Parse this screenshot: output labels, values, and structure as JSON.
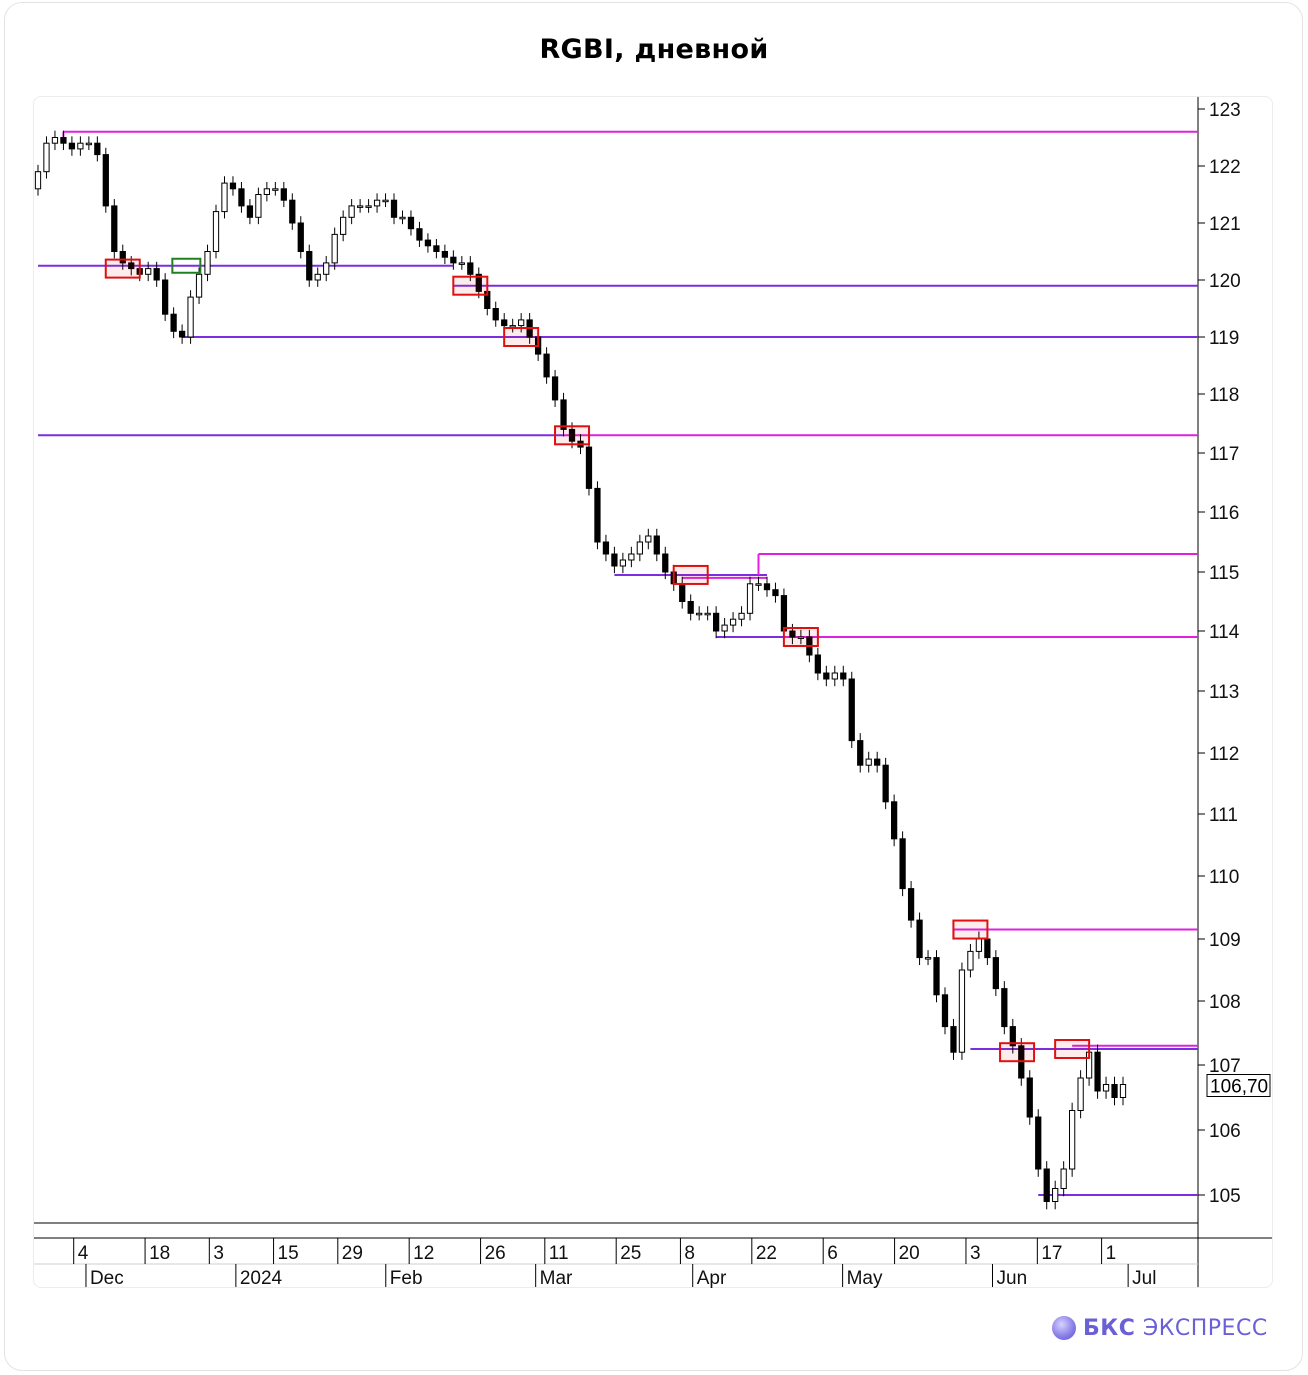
{
  "title": "RGBI, дневной",
  "brand": {
    "name_bold": "БКС",
    "name_light": "ЭКСПРЕСС"
  },
  "colors": {
    "magenta": "#e020e0",
    "purple": "#7a2ee0",
    "red_box": "#e01010",
    "green_box": "#208020",
    "candle": "#000000"
  },
  "chart_data": {
    "type": "candlestick",
    "title": "RGBI, дневной",
    "y_ticks": [
      "123",
      "122",
      "121",
      "120",
      "119",
      "118",
      "117",
      "116",
      "115",
      "114",
      "113",
      "112",
      "111",
      "110",
      "109",
      "108",
      "107",
      "106",
      "105"
    ],
    "x_ticks_days": [
      "4",
      "18",
      "3",
      "15",
      "29",
      "12",
      "26",
      "11",
      "25",
      "8",
      "22",
      "6",
      "20",
      "3",
      "17",
      "1"
    ],
    "x_ticks_months": [
      "Dec",
      "2024",
      "Feb",
      "Mar",
      "Apr",
      "May",
      "Jun",
      "Jul"
    ],
    "last_price_label": "106,70",
    "last_price": 106.7,
    "period": "late Nov 2023 – early Jul 2024, daily",
    "close_series": [
      121.9,
      122.4,
      122.5,
      122.4,
      122.3,
      122.4,
      122.4,
      122.2,
      121.3,
      120.5,
      120.3,
      120.2,
      120.1,
      120.2,
      120.0,
      119.4,
      119.1,
      119.0,
      119.7,
      120.1,
      120.5,
      121.2,
      121.7,
      121.6,
      121.3,
      121.1,
      121.5,
      121.6,
      121.6,
      121.4,
      121.0,
      120.5,
      120.0,
      120.1,
      120.3,
      120.8,
      121.1,
      121.3,
      121.3,
      121.3,
      121.4,
      121.4,
      121.1,
      121.1,
      120.9,
      120.7,
      120.6,
      120.5,
      120.4,
      120.3,
      120.3,
      120.1,
      119.8,
      119.5,
      119.3,
      119.2,
      119.2,
      119.3,
      119.0,
      118.7,
      118.3,
      117.9,
      117.4,
      117.2,
      117.1,
      116.4,
      115.5,
      115.3,
      115.1,
      115.2,
      115.3,
      115.5,
      115.6,
      115.3,
      115.0,
      114.8,
      114.5,
      114.3,
      114.3,
      114.3,
      114.0,
      114.1,
      114.2,
      114.3,
      114.8,
      114.8,
      114.7,
      114.6,
      114.0,
      113.9,
      113.9,
      113.6,
      113.3,
      113.2,
      113.3,
      113.2,
      112.2,
      111.8,
      111.9,
      111.8,
      111.2,
      110.6,
      109.8,
      109.3,
      108.7,
      108.7,
      108.1,
      107.6,
      107.2,
      108.5,
      108.8,
      109.0,
      108.7,
      108.2,
      107.6,
      107.3,
      106.8,
      106.2,
      105.4,
      104.9,
      105.1,
      105.4,
      106.3,
      106.8,
      107.2,
      106.6,
      106.7,
      106.5,
      106.7
    ],
    "levels": [
      {
        "value": 122.6,
        "color": "magenta",
        "from_index": 3,
        "to_index": "end"
      },
      {
        "value": 120.25,
        "color": "purple",
        "from_index": 0,
        "to_index": 49
      },
      {
        "value": 119.9,
        "color": "purple",
        "from_index": 49,
        "to_index": "end"
      },
      {
        "value": 119.0,
        "color": "purple",
        "from_index": 17,
        "to_index": "end"
      },
      {
        "value": 117.3,
        "color": "purple",
        "from_index": 0,
        "to_index": 62
      },
      {
        "value": 117.3,
        "color": "magenta",
        "from_index": 62,
        "to_index": "end"
      },
      {
        "value": 115.3,
        "color": "magenta",
        "from_index": 85,
        "to_index": "end"
      },
      {
        "value": 114.95,
        "color": "purple",
        "from_index": 68,
        "to_index": 86
      },
      {
        "value": 114.9,
        "color": "magenta",
        "from_index": 76,
        "to_index": 86
      },
      {
        "value": 113.9,
        "color": "purple",
        "from_index": 80,
        "to_index": 88
      },
      {
        "value": 113.9,
        "color": "magenta",
        "from_index": 88,
        "to_index": "end"
      },
      {
        "value": 109.15,
        "color": "magenta",
        "from_index": 108,
        "to_index": "end"
      },
      {
        "value": 107.25,
        "color": "purple",
        "from_index": 110,
        "to_index": "end"
      },
      {
        "value": 107.3,
        "color": "magenta",
        "from_index": 122,
        "to_index": "end"
      },
      {
        "value": 105.0,
        "color": "purple",
        "from_index": 118,
        "to_index": "end"
      }
    ],
    "marked_boxes": [
      {
        "center_index": 10,
        "value": 120.2,
        "color": "red"
      },
      {
        "center_index": 17.5,
        "value": 120.25,
        "color": "green"
      },
      {
        "center_index": 51,
        "value": 119.9,
        "color": "red"
      },
      {
        "center_index": 57,
        "value": 119.0,
        "color": "red"
      },
      {
        "center_index": 63,
        "value": 117.3,
        "color": "red"
      },
      {
        "center_index": 77,
        "value": 114.95,
        "color": "red"
      },
      {
        "center_index": 90,
        "value": 113.9,
        "color": "red"
      },
      {
        "center_index": 110,
        "value": 109.15,
        "color": "red"
      },
      {
        "center_index": 115.5,
        "value": 107.2,
        "color": "red"
      },
      {
        "center_index": 122,
        "value": 107.25,
        "color": "red"
      }
    ]
  }
}
